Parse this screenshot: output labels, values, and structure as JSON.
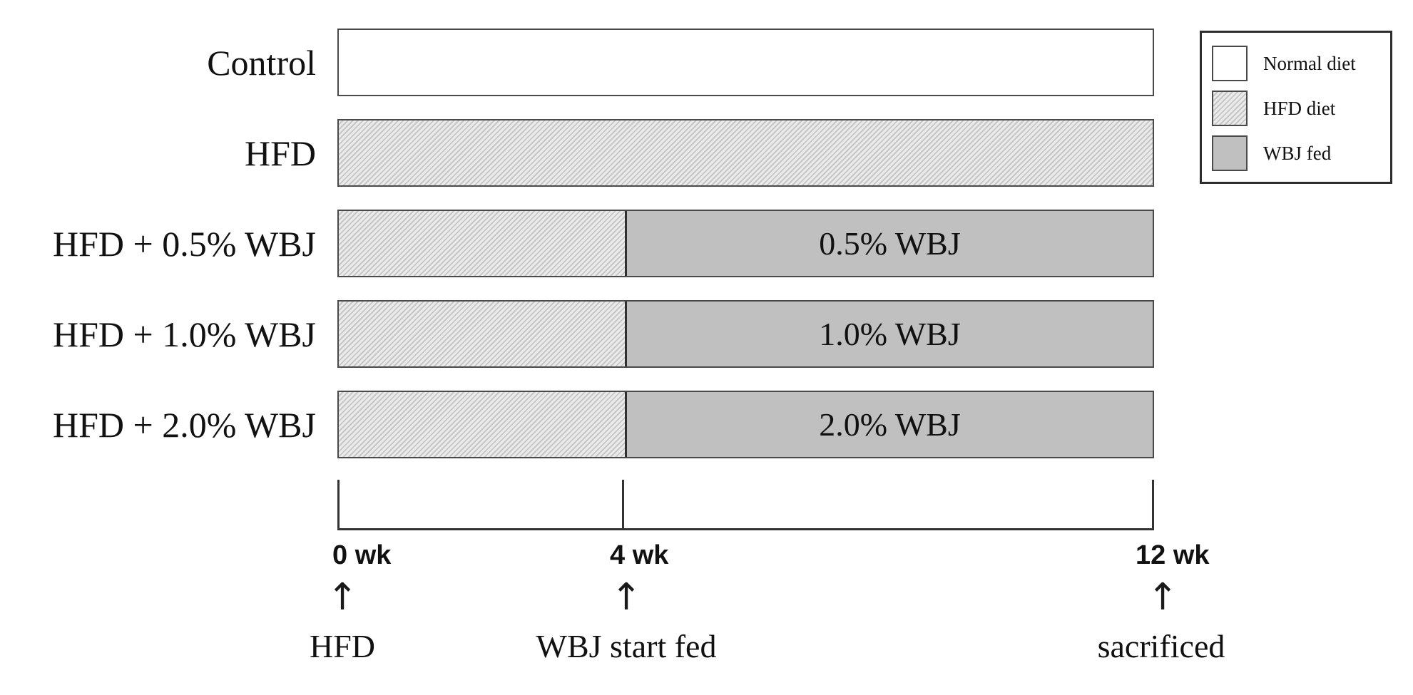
{
  "figure": {
    "type": "experimental-design-timeline",
    "arrow_glyph": "↑"
  },
  "groups": [
    {
      "label": "Control",
      "diet_sequence": "normal 0-12 wk"
    },
    {
      "label": "HFD",
      "diet_sequence": "HFD 0-12 wk"
    },
    {
      "label": "HFD + 0.5% WBJ",
      "diet_sequence": "HFD 0-4 wk, WBJ 4-12 wk",
      "wbj_label": "0.5% WBJ"
    },
    {
      "label": "HFD + 1.0% WBJ",
      "diet_sequence": "HFD 0-4 wk, WBJ 4-12 wk",
      "wbj_label": "1.0% WBJ"
    },
    {
      "label": "HFD + 2.0% WBJ",
      "diet_sequence": "HFD 0-4 wk, WBJ 4-12 wk",
      "wbj_label": "2.0% WBJ"
    }
  ],
  "timeline": {
    "ticks": [
      {
        "week": 0,
        "label": "0 wk",
        "annotation": "HFD"
      },
      {
        "week": 4,
        "label": "4 wk",
        "annotation": "WBJ start fed"
      },
      {
        "week": 12,
        "label": "12 wk",
        "annotation": "sacrificed"
      }
    ],
    "wbj_start_week": 4,
    "total_weeks": 12
  },
  "legend": {
    "items": [
      {
        "label": "Normal diet",
        "pattern": "white"
      },
      {
        "label": "HFD diet",
        "pattern": "diagonal-hatch"
      },
      {
        "label": "WBJ fed",
        "pattern": "solid-gray"
      }
    ]
  },
  "colors": {
    "wbj_fill": "#c0c0c0",
    "hatch_light": "#ebebeb",
    "hatch_dark": "#c6c6c6",
    "bar_border": "#4a4a4a",
    "axis": "#333333",
    "text": "#111111"
  }
}
